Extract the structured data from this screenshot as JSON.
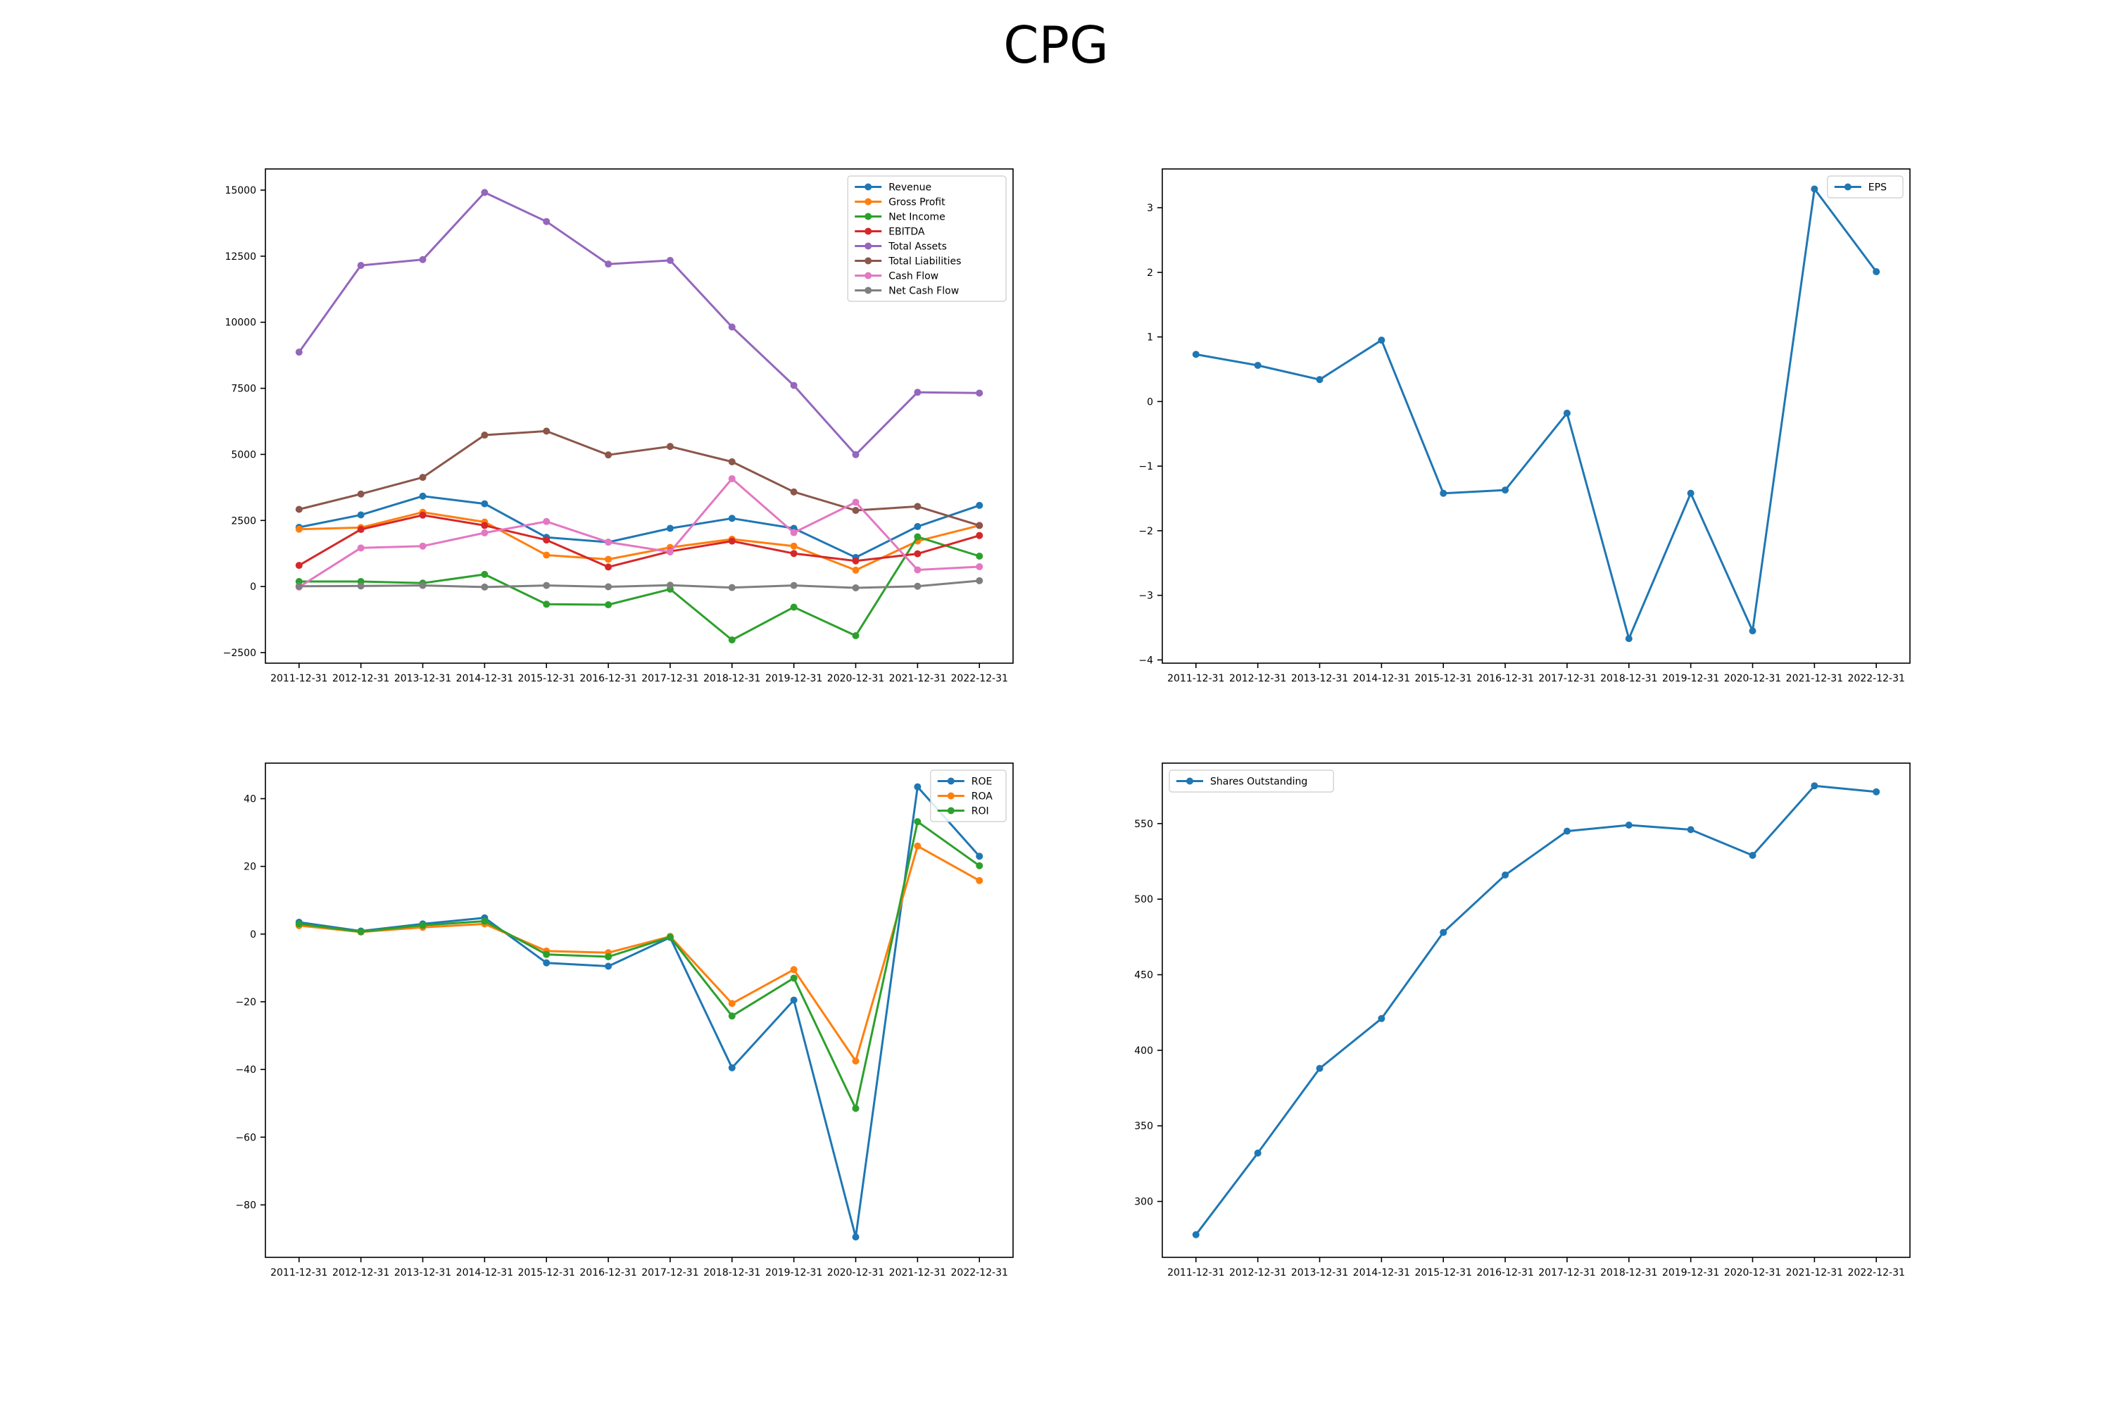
{
  "title": "CPG",
  "chart_data": [
    {
      "type": "line",
      "x": [
        "2011-12-31",
        "2012-12-31",
        "2013-12-31",
        "2014-12-31",
        "2015-12-31",
        "2016-12-31",
        "2017-12-31",
        "2018-12-31",
        "2019-12-31",
        "2020-12-31",
        "2021-12-31",
        "2022-12-31"
      ],
      "ylim": [
        -2900,
        15800
      ],
      "yticks": [
        -2500,
        0,
        2500,
        5000,
        7500,
        10000,
        12500,
        15000
      ],
      "legend": "top-right",
      "series": [
        {
          "name": "Revenue",
          "color": "#1f77b4",
          "values": [
            2240,
            2710,
            3420,
            3130,
            1860,
            1680,
            2200,
            2580,
            2200,
            1100,
            2270,
            3070
          ]
        },
        {
          "name": "Gross Profit",
          "color": "#ff7f0e",
          "values": [
            2170,
            2230,
            2810,
            2440,
            1190,
            1030,
            1480,
            1790,
            1530,
            620,
            1720,
            2310
          ]
        },
        {
          "name": "Net Income",
          "color": "#2ca02c",
          "values": [
            190,
            190,
            130,
            460,
            -670,
            -690,
            -100,
            -2020,
            -780,
            -1860,
            1880,
            1150
          ]
        },
        {
          "name": "EBITDA",
          "color": "#d62728",
          "values": [
            800,
            2160,
            2700,
            2310,
            1760,
            740,
            1330,
            1720,
            1250,
            970,
            1240,
            1930
          ]
        },
        {
          "name": "Total Assets",
          "color": "#9467bd",
          "values": [
            8870,
            12150,
            12370,
            14910,
            13810,
            12200,
            12340,
            9820,
            7610,
            4990,
            7350,
            7320
          ]
        },
        {
          "name": "Total Liabilities",
          "color": "#8c564b",
          "values": [
            2920,
            3500,
            4130,
            5730,
            5880,
            4980,
            5300,
            4720,
            3580,
            2880,
            3030,
            2310
          ]
        },
        {
          "name": "Cash Flow",
          "color": "#e377c2",
          "values": [
            -20,
            1460,
            1530,
            2030,
            2460,
            1680,
            1310,
            4080,
            2040,
            3190,
            630,
            750
          ]
        },
        {
          "name": "Net Cash Flow",
          "color": "#7f7f7f",
          "values": [
            10,
            20,
            40,
            -20,
            40,
            -10,
            50,
            -40,
            40,
            -50,
            10,
            220
          ]
        }
      ]
    },
    {
      "type": "line",
      "x": [
        "2011-12-31",
        "2012-12-31",
        "2013-12-31",
        "2014-12-31",
        "2015-12-31",
        "2016-12-31",
        "2017-12-31",
        "2018-12-31",
        "2019-12-31",
        "2020-12-31",
        "2021-12-31",
        "2022-12-31"
      ],
      "ylim": [
        -4.05,
        3.6
      ],
      "yticks": [
        -4,
        -3,
        -2,
        -1,
        0,
        1,
        2,
        3
      ],
      "legend": "top-right",
      "series": [
        {
          "name": "EPS",
          "color": "#1f77b4",
          "values": [
            0.73,
            0.56,
            0.34,
            0.95,
            -1.42,
            -1.37,
            -0.18,
            -3.67,
            -1.42,
            -3.55,
            3.29,
            2.01
          ]
        }
      ]
    },
    {
      "type": "line",
      "x": [
        "2011-12-31",
        "2012-12-31",
        "2013-12-31",
        "2014-12-31",
        "2015-12-31",
        "2016-12-31",
        "2017-12-31",
        "2018-12-31",
        "2019-12-31",
        "2020-12-31",
        "2021-12-31",
        "2022-12-31"
      ],
      "ylim": [
        -95.5,
        50.5
      ],
      "yticks": [
        -80,
        -60,
        -40,
        -20,
        0,
        20,
        40
      ],
      "legend": "top-right",
      "series": [
        {
          "name": "ROE",
          "color": "#1f77b4",
          "values": [
            3.5,
            0.9,
            3.0,
            4.8,
            -8.5,
            -9.5,
            -1.0,
            -39.5,
            -19.5,
            -89.5,
            43.5,
            23.0
          ]
        },
        {
          "name": "ROA",
          "color": "#ff7f0e",
          "values": [
            2.5,
            0.6,
            2.0,
            3.0,
            -5.0,
            -5.5,
            -0.7,
            -20.5,
            -10.5,
            -37.5,
            26.0,
            15.8
          ]
        },
        {
          "name": "ROI",
          "color": "#2ca02c",
          "values": [
            3.0,
            0.7,
            2.6,
            3.8,
            -6.0,
            -6.7,
            -0.9,
            -24.2,
            -13.0,
            -51.5,
            33.2,
            20.2
          ]
        }
      ]
    },
    {
      "type": "line",
      "x": [
        "2011-12-31",
        "2012-12-31",
        "2013-12-31",
        "2014-12-31",
        "2015-12-31",
        "2016-12-31",
        "2017-12-31",
        "2018-12-31",
        "2019-12-31",
        "2020-12-31",
        "2021-12-31",
        "2022-12-31"
      ],
      "ylim": [
        263,
        590
      ],
      "yticks": [
        300,
        350,
        400,
        450,
        500,
        550
      ],
      "legend": "top-left",
      "series": [
        {
          "name": "Shares Outstanding",
          "color": "#1f77b4",
          "values": [
            278,
            332,
            388,
            421,
            478,
            516,
            545,
            549,
            546,
            529,
            575,
            571
          ]
        }
      ]
    }
  ]
}
